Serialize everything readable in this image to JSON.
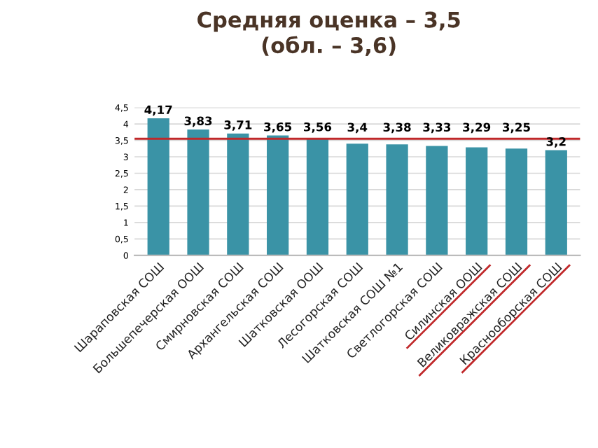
{
  "chart_data": {
    "type": "bar",
    "title": "Средняя оценка – 3,5\n(обл. – 3,6)",
    "categories": [
      "Шараповская СОШ",
      "Большепечерская ООШ",
      "Смирновская СОШ",
      "Архангельская СОШ",
      "Шатковская ООШ",
      "Лесогорская СОШ",
      "Шатковская СОШ №1",
      "Светлогорская СОШ",
      "Силинская ООШ",
      "Великовражская СОШ",
      "Краснооборская СОШ"
    ],
    "values": [
      4.17,
      3.83,
      3.71,
      3.65,
      3.56,
      3.4,
      3.38,
      3.33,
      3.29,
      3.25,
      3.2
    ],
    "value_labels": [
      "4,17",
      "3,83",
      "3,71",
      "3,65",
      "3,56",
      "3,4",
      "3,38",
      "3,33",
      "3,29",
      "3,25",
      "3,2"
    ],
    "color": "#3a93a6",
    "ylim": [
      0,
      4.5
    ],
    "yticks": [
      0,
      {
        "value": 0.5,
        "label": "0,5"
      },
      1,
      {
        "value": 1.5,
        "label": "1,5"
      },
      2,
      {
        "value": 2.5,
        "label": "2,5"
      },
      3,
      {
        "value": 3.5,
        "label": "3,5"
      },
      4,
      {
        "value": 4.5,
        "label": "4,5"
      }
    ],
    "grid": "y",
    "ref_lines": [
      {
        "axis": "y",
        "value": 3.55,
        "color": "#c0282a"
      }
    ]
  }
}
